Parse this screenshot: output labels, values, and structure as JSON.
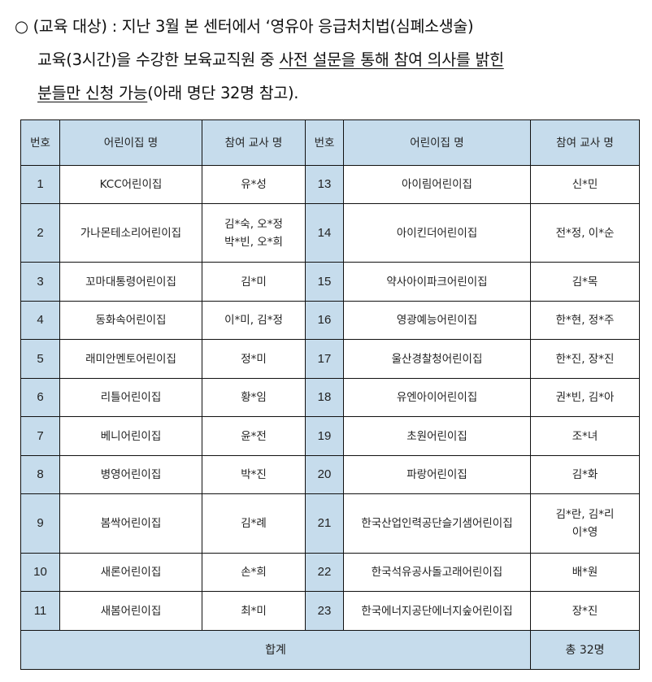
{
  "intro": {
    "bullet": "○",
    "line1": "(교육 대상) : 지난 3월 본 센터에서 ‘영유아 응급처치법(심폐소생술)",
    "line2_plain": "교육(3시간)을 수강한 보육교직원 중 ",
    "line2_underlined": "사전 설문을 통해 참여 의사를 밝힌",
    "line3_underlined": "분들만 신청 가능",
    "line3_plain": "(아래 명단 32명 참고)."
  },
  "table": {
    "headers": [
      "번호",
      "어린이집 명",
      "참여 교사 명",
      "번호",
      "어린이집 명",
      "참여 교사 명"
    ],
    "rows": [
      {
        "left": {
          "no": "1",
          "name": "KCC어린이집",
          "teachers": [
            "유*성"
          ]
        },
        "right": {
          "no": "13",
          "name": "아이림어린이집",
          "teachers": [
            "신*민"
          ]
        }
      },
      {
        "left": {
          "no": "2",
          "name": "가나몬테소리어린이집",
          "teachers": [
            "김*숙, 오*정",
            "박*빈, 오*희"
          ]
        },
        "right": {
          "no": "14",
          "name": "아이킨더어린이집",
          "teachers": [
            "전*정, 이*순"
          ]
        }
      },
      {
        "left": {
          "no": "3",
          "name": "꼬마대통령어린이집",
          "teachers": [
            "김*미"
          ]
        },
        "right": {
          "no": "15",
          "name": "약사아이파크어린이집",
          "teachers": [
            "김*목"
          ]
        }
      },
      {
        "left": {
          "no": "4",
          "name": "동화속어린이집",
          "teachers": [
            "이*미, 김*정"
          ]
        },
        "right": {
          "no": "16",
          "name": "영광예능어린이집",
          "teachers": [
            "한*현, 정*주"
          ]
        }
      },
      {
        "left": {
          "no": "5",
          "name": "래미안멘토어린이집",
          "teachers": [
            "정*미"
          ]
        },
        "right": {
          "no": "17",
          "name": "울산경찰청어린이집",
          "teachers": [
            "한*진, 장*진"
          ]
        }
      },
      {
        "left": {
          "no": "6",
          "name": "리틀어린이집",
          "teachers": [
            "황*임"
          ]
        },
        "right": {
          "no": "18",
          "name": "유엔아이어린이집",
          "teachers": [
            "권*빈, 김*아"
          ]
        }
      },
      {
        "left": {
          "no": "7",
          "name": "베니어린이집",
          "teachers": [
            "윤*전"
          ]
        },
        "right": {
          "no": "19",
          "name": "초원어린이집",
          "teachers": [
            "조*녀"
          ]
        }
      },
      {
        "left": {
          "no": "8",
          "name": "병영어린이집",
          "teachers": [
            "박*진"
          ]
        },
        "right": {
          "no": "20",
          "name": "파랑어린이집",
          "teachers": [
            "김*화"
          ]
        }
      },
      {
        "left": {
          "no": "9",
          "name": "봄싹어린이집",
          "teachers": [
            "김*례"
          ]
        },
        "right": {
          "no": "21",
          "name": "한국산업인력공단슬기샘어린이집",
          "teachers": [
            "김*란, 김*리",
            "이*영"
          ]
        }
      },
      {
        "left": {
          "no": "10",
          "name": "새론어린이집",
          "teachers": [
            "손*희"
          ]
        },
        "right": {
          "no": "22",
          "name": "한국석유공사돌고래어린이집",
          "teachers": [
            "배*원"
          ]
        }
      },
      {
        "left": {
          "no": "11",
          "name": "새봄어린이집",
          "teachers": [
            "최*미"
          ]
        },
        "right": {
          "no": "23",
          "name": "한국에너지공단에너지숲어린이집",
          "teachers": [
            "장*진"
          ]
        }
      }
    ],
    "total_label": "합계",
    "total_value": "총 32명"
  },
  "colors": {
    "header_bg": "#c6dcec",
    "border": "#111111"
  }
}
